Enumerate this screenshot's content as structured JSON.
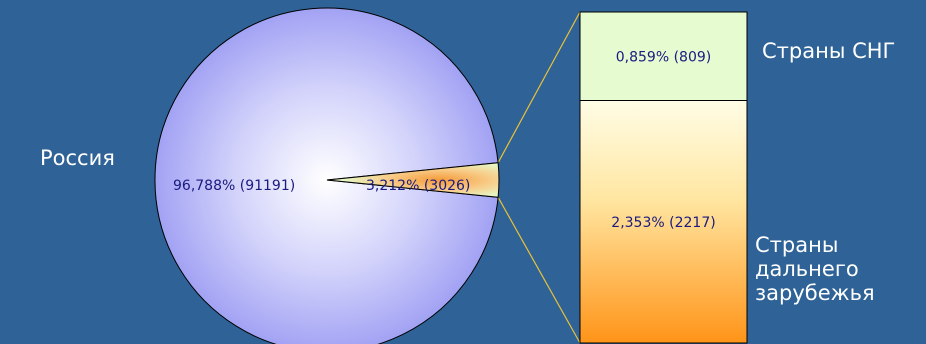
{
  "chart_data": {
    "type": "pie",
    "title": "",
    "main_pie": {
      "slices": [
        {
          "label": "Россия",
          "percent": 96.788,
          "count": 91191,
          "value_text": "96,788%  (91191)",
          "color": "#9a9af3"
        },
        {
          "label": "",
          "percent": 3.212,
          "count": 3026,
          "value_text": "3,212%  (3026)",
          "color": "#e9f7c2"
        }
      ]
    },
    "breakdown_bar": {
      "of_slice": 1,
      "segments": [
        {
          "label": "Страны СНГ",
          "percent": 0.859,
          "count": 809,
          "value_text": "0,859%  (809)",
          "color": "#e6fbd0"
        },
        {
          "label": "Страны дальнего зарубежья",
          "percent": 2.353,
          "count": 2217,
          "value_text": "2,353%  (2217)",
          "color": "#ff9a22"
        }
      ]
    },
    "colors": {
      "background": "#2f6296",
      "connector": "#e9c23a",
      "text_dark": "#1a1a80",
      "label_light": "#ffffff"
    }
  }
}
